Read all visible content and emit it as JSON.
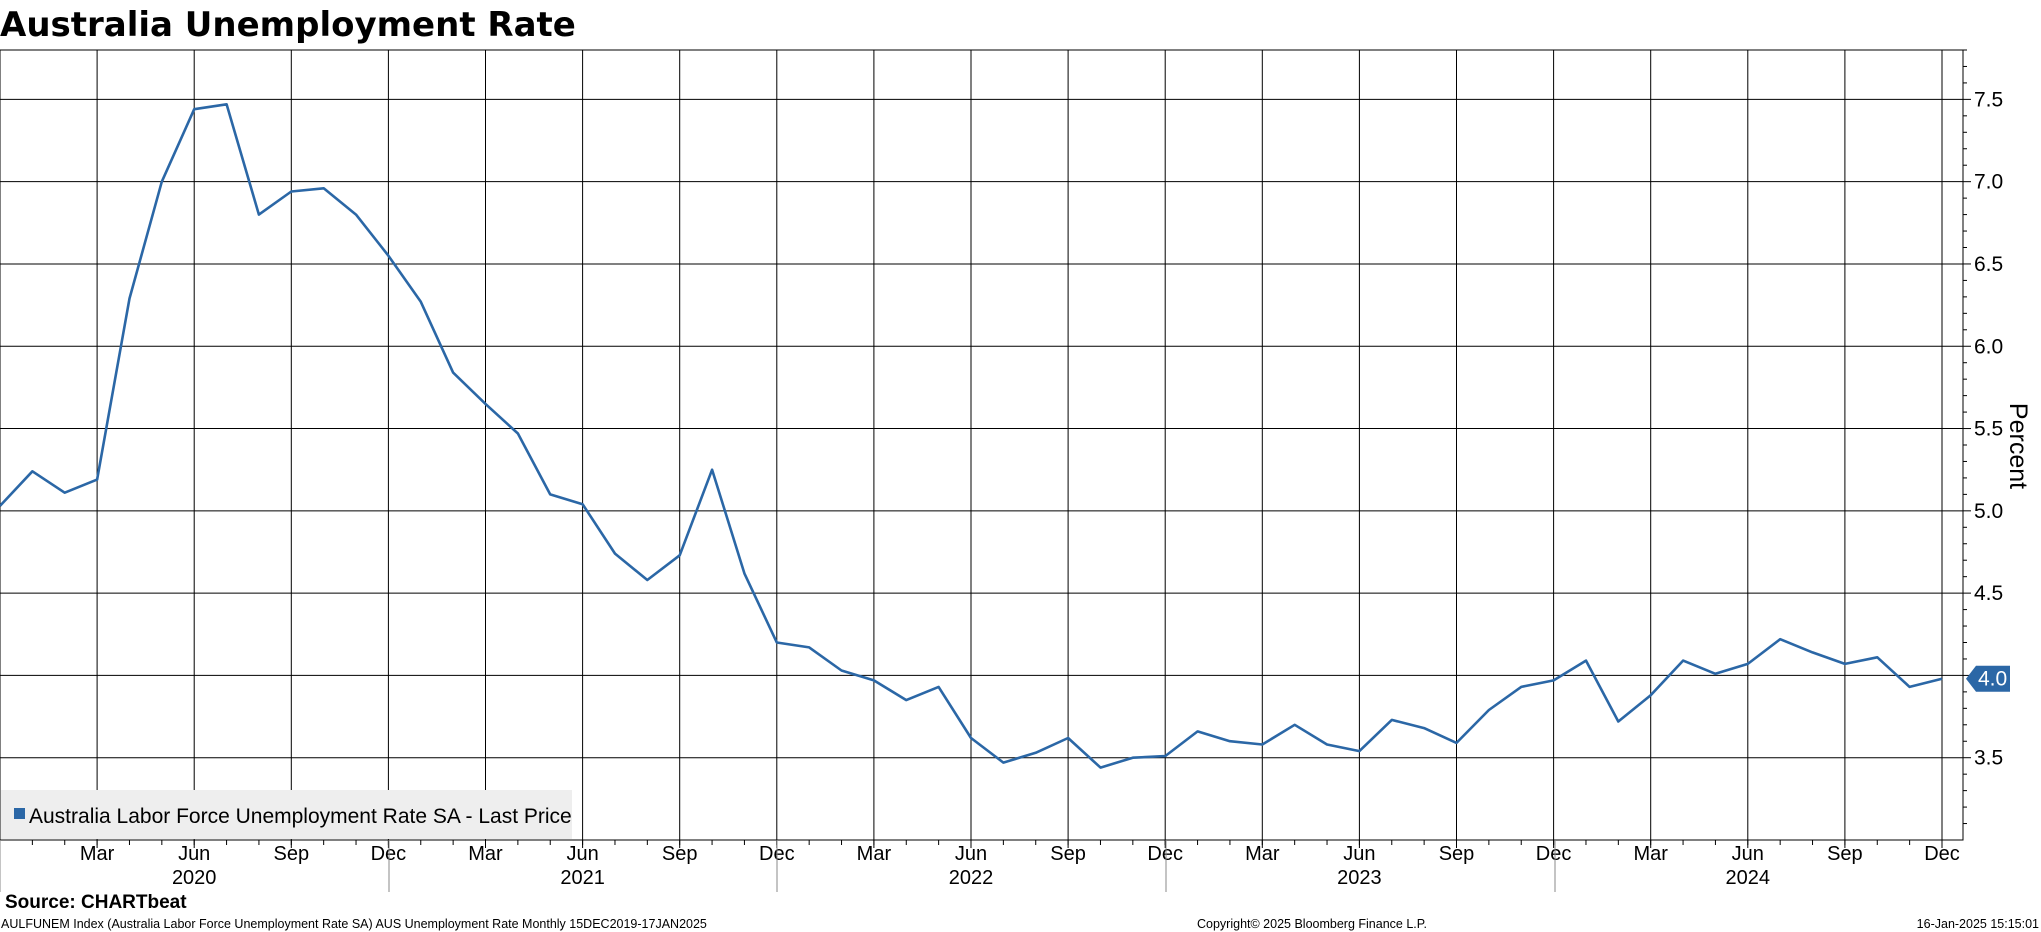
{
  "chart_data": {
    "type": "line",
    "title": "Australia Unemployment Rate",
    "ylabel": "Percent",
    "ylim": [
      3.0,
      7.8
    ],
    "yticks": [
      3.5,
      4.0,
      4.5,
      5.0,
      5.5,
      6.0,
      6.5,
      7.0,
      7.5
    ],
    "ytick_labels": [
      "3.5",
      "4.0",
      "4.5",
      "5.0",
      "5.5",
      "6.0",
      "6.5",
      "7.0",
      "7.5"
    ],
    "x_range": [
      "2019-12",
      "2024-12"
    ],
    "x_month_ticks": [
      {
        "date": "2020-03",
        "label": "Mar"
      },
      {
        "date": "2020-06",
        "label": "Jun"
      },
      {
        "date": "2020-09",
        "label": "Sep"
      },
      {
        "date": "2020-12",
        "label": "Dec"
      },
      {
        "date": "2021-03",
        "label": "Mar"
      },
      {
        "date": "2021-06",
        "label": "Jun"
      },
      {
        "date": "2021-09",
        "label": "Sep"
      },
      {
        "date": "2021-12",
        "label": "Dec"
      },
      {
        "date": "2022-03",
        "label": "Mar"
      },
      {
        "date": "2022-06",
        "label": "Jun"
      },
      {
        "date": "2022-09",
        "label": "Sep"
      },
      {
        "date": "2022-12",
        "label": "Dec"
      },
      {
        "date": "2023-03",
        "label": "Mar"
      },
      {
        "date": "2023-06",
        "label": "Jun"
      },
      {
        "date": "2023-09",
        "label": "Sep"
      },
      {
        "date": "2023-12",
        "label": "Dec"
      },
      {
        "date": "2024-03",
        "label": "Mar"
      },
      {
        "date": "2024-06",
        "label": "Jun"
      },
      {
        "date": "2024-09",
        "label": "Sep"
      },
      {
        "date": "2024-12",
        "label": "Dec"
      }
    ],
    "x_year_labels": [
      {
        "date": "2020-06",
        "label": "2020"
      },
      {
        "date": "2021-06",
        "label": "2021"
      },
      {
        "date": "2022-06",
        "label": "2022"
      },
      {
        "date": "2023-06",
        "label": "2023"
      },
      {
        "date": "2024-06",
        "label": "2024"
      }
    ],
    "grid": true,
    "legend_position": "bottom-left",
    "line_color": "#2b67a6",
    "last_value_label": "4.0",
    "series": [
      {
        "name": "Australia Labor Force Unemployment Rate SA - Last Price",
        "x": [
          "2019-12",
          "2020-01",
          "2020-02",
          "2020-03",
          "2020-04",
          "2020-05",
          "2020-06",
          "2020-07",
          "2020-08",
          "2020-09",
          "2020-10",
          "2020-11",
          "2020-12",
          "2021-01",
          "2021-02",
          "2021-03",
          "2021-04",
          "2021-05",
          "2021-06",
          "2021-07",
          "2021-08",
          "2021-09",
          "2021-10",
          "2021-11",
          "2021-12",
          "2022-01",
          "2022-02",
          "2022-03",
          "2022-04",
          "2022-05",
          "2022-06",
          "2022-07",
          "2022-08",
          "2022-09",
          "2022-10",
          "2022-11",
          "2022-12",
          "2023-01",
          "2023-02",
          "2023-03",
          "2023-04",
          "2023-05",
          "2023-06",
          "2023-07",
          "2023-08",
          "2023-09",
          "2023-10",
          "2023-11",
          "2023-12",
          "2024-01",
          "2024-02",
          "2024-03",
          "2024-04",
          "2024-05",
          "2024-06",
          "2024-07",
          "2024-08",
          "2024-09",
          "2024-10",
          "2024-11",
          "2024-12"
        ],
        "values": [
          5.03,
          5.24,
          5.11,
          5.19,
          6.29,
          7.0,
          7.44,
          7.47,
          6.8,
          6.94,
          6.96,
          6.8,
          6.55,
          6.27,
          5.84,
          5.65,
          5.47,
          5.1,
          5.04,
          4.74,
          4.58,
          4.73,
          5.25,
          4.62,
          4.2,
          4.17,
          4.03,
          3.97,
          3.85,
          3.93,
          3.62,
          3.47,
          3.53,
          3.62,
          3.44,
          3.5,
          3.51,
          3.66,
          3.6,
          3.58,
          3.7,
          3.58,
          3.54,
          3.73,
          3.68,
          3.59,
          3.79,
          3.93,
          3.97,
          4.09,
          3.72,
          3.88,
          4.09,
          4.01,
          4.07,
          4.22,
          4.14,
          4.07,
          4.11,
          3.93,
          3.98
        ]
      }
    ]
  },
  "source_label": "Source: CHARTbeat",
  "footer": {
    "index_info": "AULFUNEM Index (Australia Labor Force Unemployment Rate SA) AUS Unemployment Rate  Monthly 15DEC2019-17JAN2025",
    "copyright": "Copyright© 2025 Bloomberg Finance L.P.",
    "timestamp": "16-Jan-2025 15:15:01"
  }
}
